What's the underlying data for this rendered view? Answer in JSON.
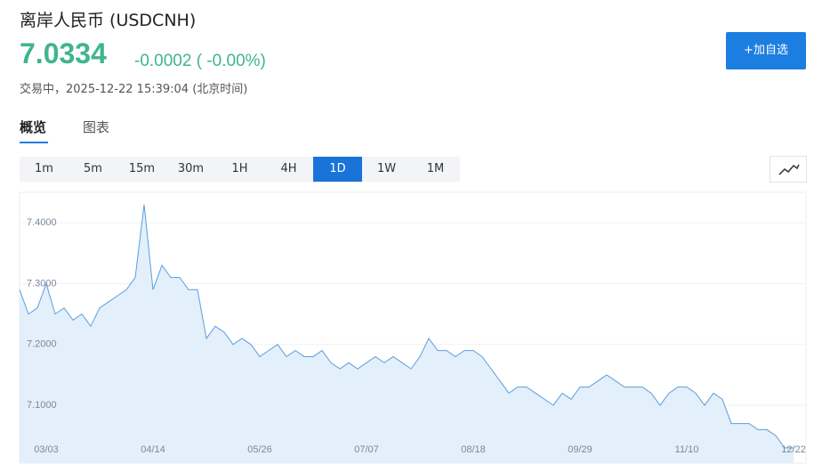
{
  "header": {
    "title": "离岸人民币 (USDCNH)",
    "price": "7.0334",
    "change": "-0.0002 ( -0.00%)",
    "status": "交易中，2025-12-22 15:39:04 (北京时间)",
    "button": "+加自选"
  },
  "tabs": [
    "概览",
    "图表"
  ],
  "active_tab": 0,
  "timeframes": [
    "1m",
    "5m",
    "15m",
    "30m",
    "1H",
    "4H",
    "1D",
    "1W",
    "1M"
  ],
  "active_timeframe": 6,
  "chart_data": {
    "type": "area",
    "color": "#5a9ee0",
    "fill": "#e3effa",
    "grid": true,
    "categories": [
      null,
      null,
      null,
      "03/03",
      null,
      null,
      null,
      null,
      null,
      null,
      null,
      null,
      null,
      null,
      null,
      "04/14",
      null,
      null,
      null,
      null,
      null,
      null,
      null,
      null,
      null,
      null,
      null,
      "05/26",
      null,
      null,
      null,
      null,
      null,
      null,
      null,
      null,
      null,
      null,
      null,
      "07/07",
      null,
      null,
      null,
      null,
      null,
      null,
      null,
      null,
      null,
      null,
      null,
      "08/18",
      null,
      null,
      null,
      null,
      null,
      null,
      null,
      null,
      null,
      null,
      null,
      "09/29",
      null,
      null,
      null,
      null,
      null,
      null,
      null,
      null,
      null,
      null,
      null,
      "11/10",
      null,
      null,
      null,
      null,
      null,
      null,
      null,
      null,
      null,
      null,
      null,
      "12/22"
    ],
    "values": [
      7.29,
      7.25,
      7.26,
      7.3,
      7.25,
      7.26,
      7.24,
      7.25,
      7.23,
      7.26,
      7.27,
      7.28,
      7.29,
      7.31,
      7.43,
      7.29,
      7.33,
      7.31,
      7.31,
      7.29,
      7.29,
      7.21,
      7.23,
      7.22,
      7.2,
      7.21,
      7.2,
      7.18,
      7.19,
      7.2,
      7.18,
      7.19,
      7.18,
      7.18,
      7.19,
      7.17,
      7.16,
      7.17,
      7.16,
      7.17,
      7.18,
      7.17,
      7.18,
      7.17,
      7.16,
      7.18,
      7.21,
      7.19,
      7.19,
      7.18,
      7.19,
      7.19,
      7.18,
      7.16,
      7.14,
      7.12,
      7.13,
      7.13,
      7.12,
      7.11,
      7.1,
      7.12,
      7.11,
      7.13,
      7.13,
      7.14,
      7.15,
      7.14,
      7.13,
      7.13,
      7.13,
      7.12,
      7.1,
      7.12,
      7.13,
      7.13,
      7.12,
      7.1,
      7.12,
      7.11,
      7.07,
      7.07,
      7.07,
      7.06,
      7.06,
      7.05,
      7.03,
      7.03
    ],
    "ylim": [
      7.005,
      7.45
    ],
    "yticks": [
      {
        "value": 7.1,
        "label": "7.1000"
      },
      {
        "value": 7.2,
        "label": "7.2000"
      },
      {
        "value": 7.3,
        "label": "7.3000"
      },
      {
        "value": 7.4,
        "label": "7.4000"
      }
    ]
  }
}
